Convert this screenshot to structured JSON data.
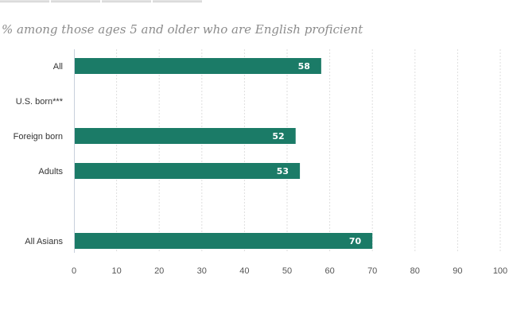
{
  "header": {
    "subtitle": "% among those ages 5 and older who are English proficient"
  },
  "colors": {
    "bar": "#1b7b67",
    "grid": "#dedede",
    "axis": "#c8d0dc"
  },
  "chart_data": {
    "type": "bar",
    "orientation": "horizontal",
    "categories": [
      "All",
      "U.S. born***",
      "Foreign born",
      "Adults",
      "",
      "All Asians"
    ],
    "values": [
      58,
      null,
      52,
      53,
      null,
      70
    ],
    "value_labels": [
      "58",
      "",
      "52",
      "53",
      "",
      "70"
    ],
    "xlim": [
      0,
      100
    ],
    "x_ticks": [
      "0",
      "10",
      "20",
      "30",
      "40",
      "50",
      "60",
      "70",
      "80",
      "90",
      "100"
    ],
    "grid": "vertical-dashed",
    "title": "",
    "xlabel": "",
    "ylabel": ""
  }
}
